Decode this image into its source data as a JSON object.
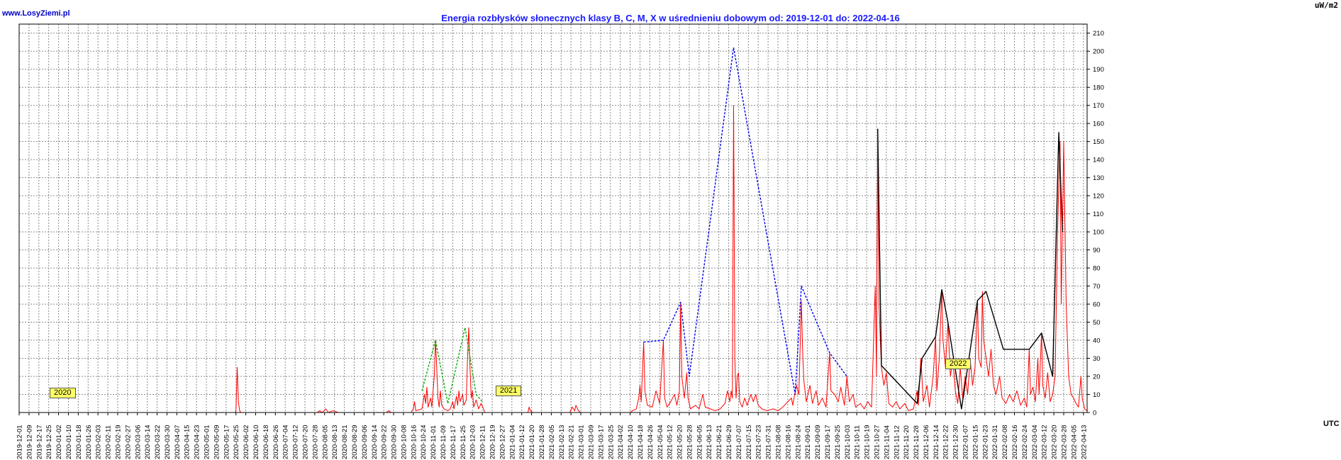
{
  "site": "www.LosyZiemi.pl",
  "unit": "uW/m2",
  "utc": "UTC",
  "chart_data": {
    "type": "line",
    "title": "Energia rozbłysków słonecznych klasy B, C, M, X w uśrednieniu dobowym od: 2019-12-01 do: 2022-04-16",
    "ylabel": "uW/m2",
    "xlabel": "UTC",
    "xlim": [
      "2019-12-01",
      "2022-04-16"
    ],
    "ylim": [
      0,
      215
    ],
    "yticks": [
      0,
      10,
      20,
      30,
      40,
      50,
      60,
      70,
      80,
      90,
      100,
      110,
      120,
      130,
      140,
      150,
      160,
      170,
      180,
      190,
      200,
      210
    ],
    "xtick_start": "2019-12-01",
    "xtick_step_days": 8,
    "grid": true,
    "year_labels": [
      {
        "text": "2020",
        "date": "2020-01-04",
        "y": 11
      },
      {
        "text": "2021",
        "date": "2020-12-31",
        "y": 12
      },
      {
        "text": "2022",
        "date": "2021-12-31",
        "y": 27
      }
    ],
    "series": [
      {
        "color": "#ff0000",
        "style": "daily",
        "points": [
          [
            "2019-12-01",
            0
          ],
          [
            "2020-05-24",
            0
          ],
          [
            "2020-05-25",
            0.5
          ],
          [
            "2020-05-26",
            25
          ],
          [
            "2020-05-27",
            6
          ],
          [
            "2020-05-28",
            1
          ],
          [
            "2020-05-29",
            0
          ],
          [
            "2020-07-30",
            0
          ],
          [
            "2020-08-01",
            1
          ],
          [
            "2020-08-03",
            0
          ],
          [
            "2020-08-06",
            2
          ],
          [
            "2020-08-08",
            0
          ],
          [
            "2020-08-12",
            1
          ],
          [
            "2020-08-16",
            0
          ],
          [
            "2020-09-24",
            0
          ],
          [
            "2020-09-26",
            1
          ],
          [
            "2020-09-28",
            0
          ],
          [
            "2020-10-14",
            0
          ],
          [
            "2020-10-16",
            2
          ],
          [
            "2020-10-17",
            6
          ],
          [
            "2020-10-18",
            1
          ],
          [
            "2020-10-23",
            2
          ],
          [
            "2020-10-25",
            10
          ],
          [
            "2020-10-26",
            5
          ],
          [
            "2020-10-27",
            14
          ],
          [
            "2020-10-28",
            3
          ],
          [
            "2020-10-30",
            8
          ],
          [
            "2020-10-31",
            3
          ],
          [
            "2020-11-02",
            20
          ],
          [
            "2020-11-03",
            40
          ],
          [
            "2020-11-04",
            25
          ],
          [
            "2020-11-05",
            8
          ],
          [
            "2020-11-06",
            3
          ],
          [
            "2020-11-07",
            12
          ],
          [
            "2020-11-08",
            4
          ],
          [
            "2020-11-10",
            2
          ],
          [
            "2020-11-13",
            1
          ],
          [
            "2020-11-15",
            2
          ],
          [
            "2020-11-17",
            6
          ],
          [
            "2020-11-18",
            2
          ],
          [
            "2020-11-20",
            9
          ],
          [
            "2020-11-21",
            4
          ],
          [
            "2020-11-22",
            12
          ],
          [
            "2020-11-23",
            6
          ],
          [
            "2020-11-25",
            10
          ],
          [
            "2020-11-26",
            4
          ],
          [
            "2020-11-28",
            7
          ],
          [
            "2020-11-29",
            30
          ],
          [
            "2020-11-30",
            47
          ],
          [
            "2020-12-01",
            25
          ],
          [
            "2020-12-02",
            8
          ],
          [
            "2020-12-03",
            12
          ],
          [
            "2020-12-04",
            3
          ],
          [
            "2020-12-06",
            7
          ],
          [
            "2020-12-08",
            2
          ],
          [
            "2020-12-10",
            5
          ],
          [
            "2020-12-12",
            2
          ],
          [
            "2020-12-13",
            0
          ],
          [
            "2021-01-17",
            0
          ],
          [
            "2021-01-18",
            3
          ],
          [
            "2021-01-19",
            1
          ],
          [
            "2021-01-21",
            0
          ],
          [
            "2021-02-20",
            0
          ],
          [
            "2021-02-22",
            3
          ],
          [
            "2021-02-24",
            1
          ],
          [
            "2021-02-25",
            4
          ],
          [
            "2021-02-27",
            1
          ],
          [
            "2021-03-01",
            0
          ],
          [
            "2021-04-10",
            0
          ],
          [
            "2021-04-12",
            1
          ],
          [
            "2021-04-15",
            2
          ],
          [
            "2021-04-17",
            8
          ],
          [
            "2021-04-18",
            15
          ],
          [
            "2021-04-19",
            6
          ],
          [
            "2021-04-21",
            39
          ],
          [
            "2021-04-22",
            12
          ],
          [
            "2021-04-24",
            4
          ],
          [
            "2021-04-28",
            3
          ],
          [
            "2021-05-01",
            12
          ],
          [
            "2021-05-04",
            5
          ],
          [
            "2021-05-07",
            40
          ],
          [
            "2021-05-08",
            8
          ],
          [
            "2021-05-10",
            3
          ],
          [
            "2021-05-13",
            6
          ],
          [
            "2021-05-16",
            10
          ],
          [
            "2021-05-18",
            4
          ],
          [
            "2021-05-20",
            12
          ],
          [
            "2021-05-21",
            61
          ],
          [
            "2021-05-22",
            20
          ],
          [
            "2021-05-24",
            8
          ],
          [
            "2021-05-26",
            22
          ],
          [
            "2021-05-27",
            8
          ],
          [
            "2021-05-29",
            2
          ],
          [
            "2021-06-02",
            4
          ],
          [
            "2021-06-05",
            2
          ],
          [
            "2021-06-08",
            10
          ],
          [
            "2021-06-10",
            3
          ],
          [
            "2021-06-14",
            2
          ],
          [
            "2021-06-18",
            1
          ],
          [
            "2021-06-22",
            2
          ],
          [
            "2021-06-26",
            5
          ],
          [
            "2021-06-28",
            12
          ],
          [
            "2021-06-30",
            6
          ],
          [
            "2021-07-01",
            12
          ],
          [
            "2021-07-02",
            8
          ],
          [
            "2021-07-03",
            170
          ],
          [
            "2021-07-04",
            30
          ],
          [
            "2021-07-05",
            8
          ],
          [
            "2021-07-06",
            20
          ],
          [
            "2021-07-07",
            22
          ],
          [
            "2021-07-08",
            6
          ],
          [
            "2021-07-10",
            3
          ],
          [
            "2021-07-12",
            8
          ],
          [
            "2021-07-14",
            4
          ],
          [
            "2021-07-17",
            10
          ],
          [
            "2021-07-19",
            6
          ],
          [
            "2021-07-21",
            10
          ],
          [
            "2021-07-23",
            4
          ],
          [
            "2021-07-26",
            2
          ],
          [
            "2021-07-30",
            1
          ],
          [
            "2021-08-04",
            2
          ],
          [
            "2021-08-08",
            1
          ],
          [
            "2021-08-12",
            3
          ],
          [
            "2021-08-16",
            6
          ],
          [
            "2021-08-19",
            8
          ],
          [
            "2021-08-20",
            4
          ],
          [
            "2021-08-23",
            15
          ],
          [
            "2021-08-25",
            10
          ],
          [
            "2021-08-27",
            62
          ],
          [
            "2021-08-28",
            35
          ],
          [
            "2021-08-29",
            18
          ],
          [
            "2021-08-31",
            6
          ],
          [
            "2021-09-03",
            15
          ],
          [
            "2021-09-05",
            5
          ],
          [
            "2021-09-08",
            12
          ],
          [
            "2021-09-10",
            4
          ],
          [
            "2021-09-13",
            8
          ],
          [
            "2021-09-16",
            3
          ],
          [
            "2021-09-19",
            33
          ],
          [
            "2021-09-20",
            12
          ],
          [
            "2021-09-23",
            10
          ],
          [
            "2021-09-26",
            6
          ],
          [
            "2021-09-28",
            14
          ],
          [
            "2021-10-01",
            4
          ],
          [
            "2021-10-03",
            20
          ],
          [
            "2021-10-05",
            6
          ],
          [
            "2021-10-08",
            10
          ],
          [
            "2021-10-10",
            3
          ],
          [
            "2021-10-14",
            5
          ],
          [
            "2021-10-17",
            2
          ],
          [
            "2021-10-20",
            6
          ],
          [
            "2021-10-23",
            3
          ],
          [
            "2021-10-26",
            70
          ],
          [
            "2021-10-27",
            20
          ],
          [
            "2021-10-28",
            157
          ],
          [
            "2021-10-29",
            60
          ],
          [
            "2021-10-31",
            25
          ],
          [
            "2021-11-02",
            15
          ],
          [
            "2021-11-04",
            22
          ],
          [
            "2021-11-06",
            5
          ],
          [
            "2021-11-09",
            3
          ],
          [
            "2021-11-12",
            6
          ],
          [
            "2021-11-15",
            2
          ],
          [
            "2021-11-19",
            5
          ],
          [
            "2021-11-22",
            1
          ],
          [
            "2021-11-26",
            2
          ],
          [
            "2021-11-29",
            12
          ],
          [
            "2021-11-30",
            4
          ],
          [
            "2021-12-02",
            30
          ],
          [
            "2021-12-04",
            6
          ],
          [
            "2021-12-07",
            15
          ],
          [
            "2021-12-09",
            3
          ],
          [
            "2021-12-12",
            20
          ],
          [
            "2021-12-14",
            42
          ],
          [
            "2021-12-15",
            12
          ],
          [
            "2021-12-17",
            30
          ],
          [
            "2021-12-19",
            68
          ],
          [
            "2021-12-20",
            40
          ],
          [
            "2021-12-22",
            25
          ],
          [
            "2021-12-24",
            50
          ],
          [
            "2021-12-26",
            20
          ],
          [
            "2021-12-28",
            30
          ],
          [
            "2021-12-30",
            12
          ],
          [
            "2022-01-01",
            5
          ],
          [
            "2022-01-03",
            25
          ],
          [
            "2022-01-05",
            8
          ],
          [
            "2022-01-07",
            20
          ],
          [
            "2022-01-09",
            10
          ],
          [
            "2022-01-11",
            30
          ],
          [
            "2022-01-13",
            15
          ],
          [
            "2022-01-15",
            25
          ],
          [
            "2022-01-17",
            62
          ],
          [
            "2022-01-18",
            30
          ],
          [
            "2022-01-20",
            25
          ],
          [
            "2022-01-21",
            67
          ],
          [
            "2022-01-22",
            40
          ],
          [
            "2022-01-24",
            30
          ],
          [
            "2022-01-26",
            20
          ],
          [
            "2022-01-28",
            35
          ],
          [
            "2022-01-30",
            15
          ],
          [
            "2022-02-01",
            10
          ],
          [
            "2022-02-04",
            20
          ],
          [
            "2022-02-06",
            8
          ],
          [
            "2022-02-09",
            5
          ],
          [
            "2022-02-12",
            10
          ],
          [
            "2022-02-15",
            6
          ],
          [
            "2022-02-18",
            12
          ],
          [
            "2022-02-21",
            4
          ],
          [
            "2022-02-24",
            8
          ],
          [
            "2022-02-26",
            3
          ],
          [
            "2022-02-28",
            35
          ],
          [
            "2022-03-01",
            10
          ],
          [
            "2022-03-03",
            14
          ],
          [
            "2022-03-05",
            6
          ],
          [
            "2022-03-07",
            30
          ],
          [
            "2022-03-08",
            10
          ],
          [
            "2022-03-10",
            44
          ],
          [
            "2022-03-11",
            15
          ],
          [
            "2022-03-13",
            8
          ],
          [
            "2022-03-15",
            22
          ],
          [
            "2022-03-17",
            6
          ],
          [
            "2022-03-19",
            10
          ],
          [
            "2022-03-21",
            20
          ],
          [
            "2022-03-23",
            100
          ],
          [
            "2022-03-25",
            150
          ],
          [
            "2022-03-26",
            60
          ],
          [
            "2022-03-28",
            150
          ],
          [
            "2022-03-30",
            60
          ],
          [
            "2022-04-01",
            20
          ],
          [
            "2022-04-03",
            10
          ],
          [
            "2022-04-05",
            8
          ],
          [
            "2022-04-07",
            5
          ],
          [
            "2022-04-09",
            3
          ],
          [
            "2022-04-11",
            20
          ],
          [
            "2022-04-12",
            8
          ],
          [
            "2022-04-14",
            2
          ],
          [
            "2022-04-16",
            1
          ]
        ]
      },
      {
        "color": "#00b000",
        "style": "dashed",
        "points": [
          [
            "2020-10-23",
            12
          ],
          [
            "2020-11-03",
            40
          ],
          [
            "2020-11-13",
            5
          ],
          [
            "2020-11-27",
            47
          ],
          [
            "2020-12-06",
            10
          ],
          [
            "2020-12-11",
            6
          ]
        ]
      },
      {
        "color": "#0000ee",
        "style": "dashed",
        "points": [
          [
            "2021-04-21",
            39
          ],
          [
            "2021-05-07",
            40
          ],
          [
            "2021-05-21",
            61
          ],
          [
            "2021-05-28",
            20
          ],
          [
            "2021-07-03",
            202
          ],
          [
            "2021-08-22",
            10
          ],
          [
            "2021-08-27",
            70
          ],
          [
            "2021-09-19",
            33
          ],
          [
            "2021-10-03",
            20
          ]
        ]
      },
      {
        "color": "#000000",
        "style": "solid",
        "points": [
          [
            "2021-10-28",
            157
          ],
          [
            "2021-10-31",
            26
          ],
          [
            "2021-11-29",
            5
          ],
          [
            "2021-12-03",
            30
          ],
          [
            "2021-12-14",
            42
          ],
          [
            "2021-12-19",
            68
          ],
          [
            "2021-12-24",
            50
          ],
          [
            "2022-01-04",
            2
          ],
          [
            "2022-01-17",
            62
          ],
          [
            "2022-01-24",
            67
          ],
          [
            "2022-02-07",
            35
          ],
          [
            "2022-02-28",
            35
          ],
          [
            "2022-03-10",
            44
          ],
          [
            "2022-03-19",
            20
          ],
          [
            "2022-03-24",
            155
          ],
          [
            "2022-03-27",
            100
          ]
        ]
      }
    ]
  }
}
